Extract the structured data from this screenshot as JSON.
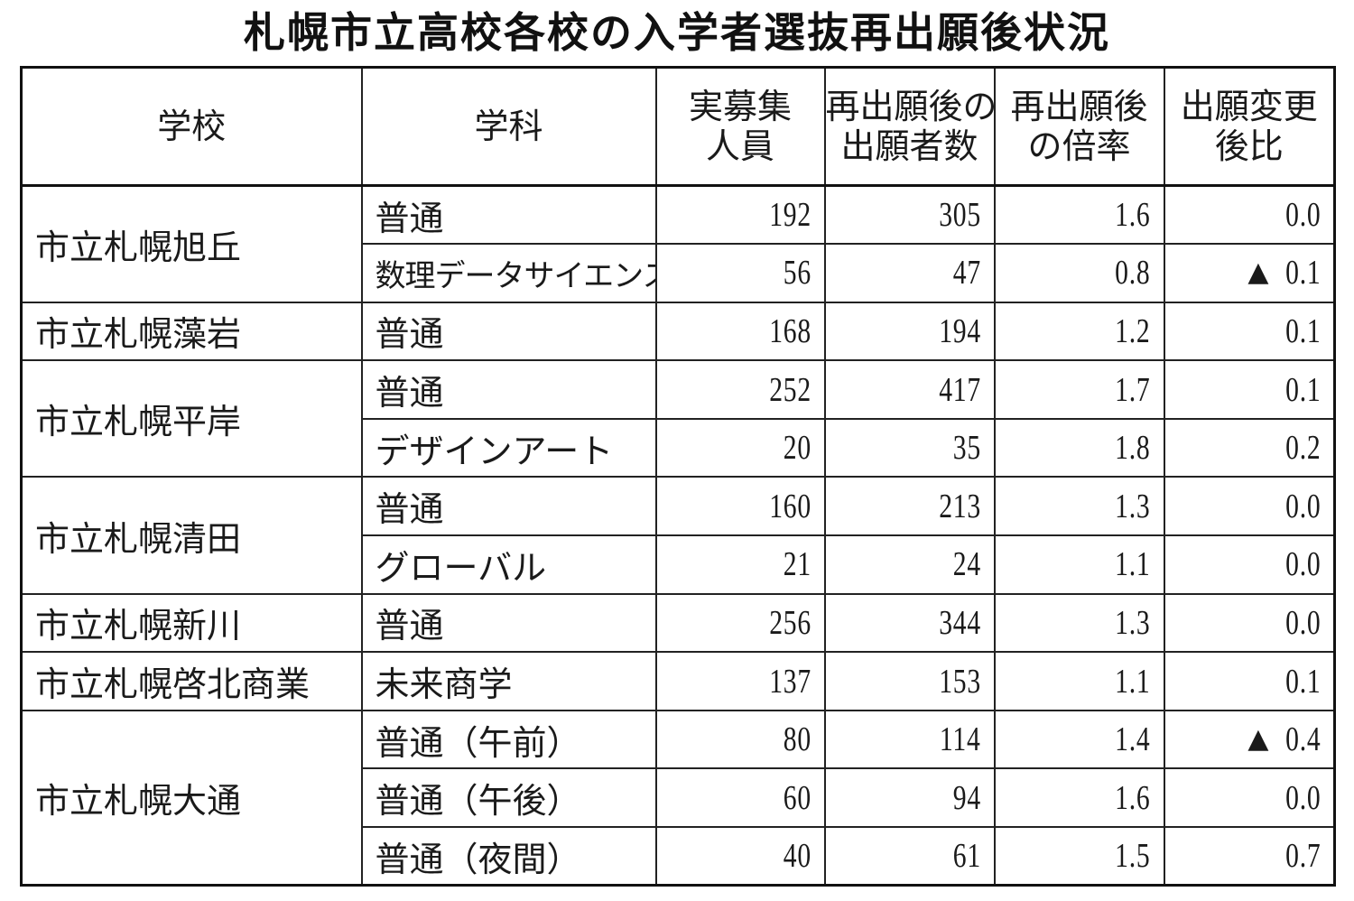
{
  "title": "札幌市立高校各校の入学者選抜再出願後状況",
  "headers": {
    "school": "学校",
    "course": "学科",
    "capacity": [
      "実募集",
      "人員"
    ],
    "applicants": [
      "再出願後の",
      "出願者数"
    ],
    "ratio": [
      "再出願後",
      "の倍率"
    ],
    "change": [
      "出願変更",
      "後比"
    ]
  },
  "rows": [
    {
      "school": "市立札幌旭丘",
      "course": "普通",
      "capacity": "192",
      "applicants": "305",
      "ratio": "1.6",
      "change": "0.0",
      "decrease": false
    },
    {
      "school": "市立札幌旭丘",
      "course": "数理データサイエンス",
      "capacity": "56",
      "applicants": "47",
      "ratio": "0.8",
      "change": "0.1",
      "decrease": true
    },
    {
      "school": "市立札幌藻岩",
      "course": "普通",
      "capacity": "168",
      "applicants": "194",
      "ratio": "1.2",
      "change": "0.1",
      "decrease": false
    },
    {
      "school": "市立札幌平岸",
      "course": "普通",
      "capacity": "252",
      "applicants": "417",
      "ratio": "1.7",
      "change": "0.1",
      "decrease": false
    },
    {
      "school": "市立札幌平岸",
      "course": "デザインアート",
      "capacity": "20",
      "applicants": "35",
      "ratio": "1.8",
      "change": "0.2",
      "decrease": false
    },
    {
      "school": "市立札幌清田",
      "course": "普通",
      "capacity": "160",
      "applicants": "213",
      "ratio": "1.3",
      "change": "0.0",
      "decrease": false
    },
    {
      "school": "市立札幌清田",
      "course": "グローバル",
      "capacity": "21",
      "applicants": "24",
      "ratio": "1.1",
      "change": "0.0",
      "decrease": false
    },
    {
      "school": "市立札幌新川",
      "course": "普通",
      "capacity": "256",
      "applicants": "344",
      "ratio": "1.3",
      "change": "0.0",
      "decrease": false
    },
    {
      "school": "市立札幌啓北商業",
      "course": "未来商学",
      "capacity": "137",
      "applicants": "153",
      "ratio": "1.1",
      "change": "0.1",
      "decrease": false
    },
    {
      "school": "市立札幌大通",
      "course": "普通（午前）",
      "capacity": "80",
      "applicants": "114",
      "ratio": "1.4",
      "change": "0.4",
      "decrease": true
    },
    {
      "school": "市立札幌大通",
      "course": "普通（午後）",
      "capacity": "60",
      "applicants": "94",
      "ratio": "1.6",
      "change": "0.0",
      "decrease": false
    },
    {
      "school": "市立札幌大通",
      "course": "普通（夜間）",
      "capacity": "40",
      "applicants": "61",
      "ratio": "1.5",
      "change": "0.7",
      "decrease": false
    }
  ],
  "decrease_marker": "▲"
}
